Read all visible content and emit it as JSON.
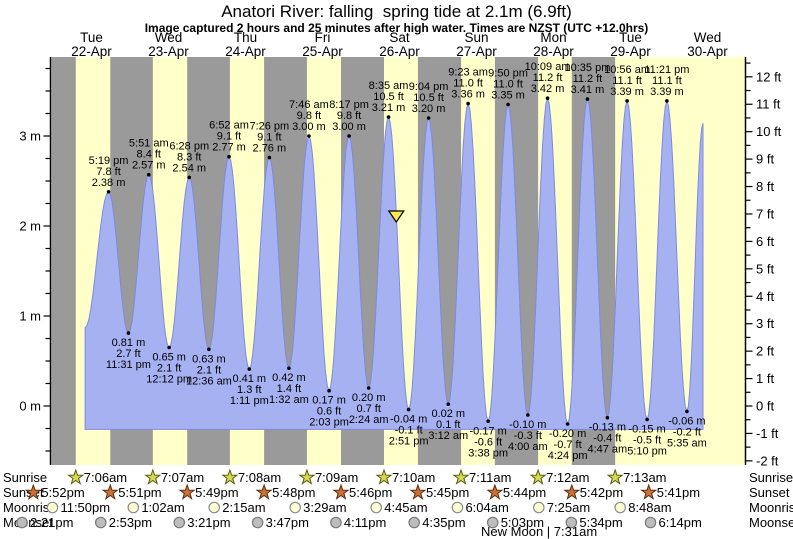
{
  "header": {
    "title": "Anatori River: falling  spring tide at 2.1m (6.9ft)",
    "subtitle": "Image captured 2 hours and 25 minutes after high water. Times are NZST (UTC +12.0hrs)"
  },
  "colors": {
    "day_band": "#ffffc9",
    "night_band": "#9a9a9a",
    "tide_fill": "#a6b1f2",
    "tide_stroke": "#7d8bdf",
    "day_label_red": "#ee3424",
    "marker_fill": "#ffe94e",
    "sunrise_star_fill": "#d6d84f",
    "sunrise_star_stroke": "#585a14",
    "sunset_star_fill": "#c9713b",
    "sunset_star_stroke": "#5d2c0b",
    "moonrise_fill": "#ffffd6",
    "moonrise_stroke": "#8a8a8a",
    "moonset_fill": "#bdbdbd",
    "moonset_stroke": "#7a7a7a",
    "axis": "#000000"
  },
  "chart_data": {
    "type": "area",
    "title": "Anatori River: falling  spring tide at 2.1m (6.9ft)",
    "x_axis_days": [
      {
        "dow": "Tue",
        "date": "22-Apr"
      },
      {
        "dow": "Wed",
        "date": "23-Apr"
      },
      {
        "dow": "Thu",
        "date": "24-Apr"
      },
      {
        "dow": "Fri",
        "date": "25-Apr"
      },
      {
        "dow": "Sat",
        "date": "26-Apr"
      },
      {
        "dow": "Sun",
        "date": "27-Apr"
      },
      {
        "dow": "Mon",
        "date": "28-Apr"
      },
      {
        "dow": "Tue",
        "date": "29-Apr"
      },
      {
        "dow": "Wed",
        "date": "30-Apr"
      }
    ],
    "y_axis_left": {
      "unit": "m",
      "labels": [
        {
          "v": 0,
          "t": "0 m"
        },
        {
          "v": 1,
          "t": "1 m"
        },
        {
          "v": 2,
          "t": "2 m"
        },
        {
          "v": 3,
          "t": "3 m"
        }
      ],
      "minor_step": 0.25,
      "range_m": [
        -0.65,
        3.88
      ]
    },
    "y_axis_right": {
      "unit": "ft",
      "labels": [
        {
          "v": -2,
          "t": "-2 ft"
        },
        {
          "v": -1,
          "t": "-1 ft"
        },
        {
          "v": 0,
          "t": "0 ft"
        },
        {
          "v": 1,
          "t": "1 ft"
        },
        {
          "v": 2,
          "t": "2 ft"
        },
        {
          "v": 3,
          "t": "3 ft"
        },
        {
          "v": 4,
          "t": "4 ft"
        },
        {
          "v": 5,
          "t": "5 ft"
        },
        {
          "v": 6,
          "t": "6 ft"
        },
        {
          "v": 7,
          "t": "7 ft"
        },
        {
          "v": 8,
          "t": "8 ft"
        },
        {
          "v": 9,
          "t": "9 ft"
        },
        {
          "v": 10,
          "t": "10 ft"
        },
        {
          "v": 11,
          "t": "11 ft"
        },
        {
          "v": 12,
          "t": "12 ft"
        }
      ],
      "minor_step": 0.5,
      "range_ft": [
        -2,
        12.5
      ]
    },
    "extremes": [
      {
        "type": "high",
        "day": 0,
        "time": "5:19 pm",
        "ft": "7.8 ft",
        "m": "2.38 m"
      },
      {
        "type": "low",
        "day": 0,
        "time": "11:31 pm",
        "ft": "2.7 ft",
        "m": "0.81 m"
      },
      {
        "type": "high",
        "day": 1,
        "time": "5:51 am",
        "ft": "8.4 ft",
        "m": "2.57 m"
      },
      {
        "type": "low",
        "day": 1,
        "time": "12:12 pm",
        "ft": "2.1 ft",
        "m": "0.65 m"
      },
      {
        "type": "high",
        "day": 1,
        "time": "6:28 pm",
        "ft": "8.3 ft",
        "m": "2.54 m"
      },
      {
        "type": "low",
        "day": 2,
        "time": "12:36 am",
        "ft": "2.1 ft",
        "m": "0.63 m"
      },
      {
        "type": "high",
        "day": 2,
        "time": "6:52 am",
        "ft": "9.1 ft",
        "m": "2.77 m"
      },
      {
        "type": "low",
        "day": 2,
        "time": "1:11 pm",
        "ft": "1.3 ft",
        "m": "0.41 m"
      },
      {
        "type": "high",
        "day": 2,
        "time": "7:26 pm",
        "ft": "9.1 ft",
        "m": "2.76 m"
      },
      {
        "type": "low",
        "day": 3,
        "time": "1:32 am",
        "ft": "1.4 ft",
        "m": "0.42 m"
      },
      {
        "type": "high",
        "day": 3,
        "time": "7:46 am",
        "ft": "9.8 ft",
        "m": "3.00 m"
      },
      {
        "type": "low",
        "day": 3,
        "time": "2:03 pm",
        "ft": "0.6 ft",
        "m": "0.17 m"
      },
      {
        "type": "high",
        "day": 3,
        "time": "8:17 pm",
        "ft": "9.8 ft",
        "m": "3.00 m"
      },
      {
        "type": "low",
        "day": 4,
        "time": "2:24 am",
        "ft": "0.7 ft",
        "m": "0.20 m"
      },
      {
        "type": "high",
        "day": 4,
        "time": "8:35 am",
        "ft": "10.5 ft",
        "m": "3.21 m"
      },
      {
        "type": "low",
        "day": 4,
        "time": "2:51 pm",
        "ft": "-0.1 ft",
        "m": "-0.04 m"
      },
      {
        "type": "high",
        "day": 4,
        "time": "9:04 pm",
        "ft": "10.5 ft",
        "m": "3.20 m"
      },
      {
        "type": "low",
        "day": 5,
        "time": "3:12 am",
        "ft": "0.1 ft",
        "m": "0.02 m"
      },
      {
        "type": "high",
        "day": 5,
        "time": "9:23 am",
        "ft": "11.0 ft",
        "m": "3.36 m"
      },
      {
        "type": "low",
        "day": 5,
        "time": "3:38 pm",
        "ft": "-0.6 ft",
        "m": "-0.17 m"
      },
      {
        "type": "high",
        "day": 5,
        "time": "9:50 pm",
        "ft": "11.0 ft",
        "m": "3.35 m"
      },
      {
        "type": "low",
        "day": 6,
        "time": "4:00 am",
        "ft": "-0.3 ft",
        "m": "-0.10 m"
      },
      {
        "type": "high",
        "day": 6,
        "time": "10:09 am",
        "ft": "11.2 ft",
        "m": "3.42 m"
      },
      {
        "type": "low",
        "day": 6,
        "time": "4:24 pm",
        "ft": "-0.7 ft",
        "m": "-0.20 m"
      },
      {
        "type": "high",
        "day": 6,
        "time": "10:35 pm",
        "ft": "11.2 ft",
        "m": "3.41 m"
      },
      {
        "type": "low",
        "day": 7,
        "time": "4:47 am",
        "ft": "-0.4 ft",
        "m": "-0.13 m"
      },
      {
        "type": "high",
        "day": 7,
        "time": "10:56 am",
        "ft": "11.1 ft",
        "m": "3.39 m"
      },
      {
        "type": "low",
        "day": 7,
        "time": "5:10 pm",
        "ft": "-0.5 ft",
        "m": "-0.15 m"
      },
      {
        "type": "high",
        "day": 7,
        "time": "11:21 pm",
        "ft": "11.1 ft",
        "m": "3.39 m"
      },
      {
        "type": "low",
        "day": 8,
        "time": "5:35 am",
        "ft": "-0.2 ft",
        "m": "-0.06 m"
      }
    ],
    "current_marker": {
      "day": 4,
      "time": "11:00 am",
      "level_m": 2.1
    },
    "data_start": {
      "day": 0,
      "hour": 10.0,
      "level_m": 0.87
    },
    "data_end": {
      "day": 8,
      "hour": 10.6,
      "level_m": 3.14
    },
    "fill_baseline_m": -0.26
  },
  "astro": {
    "rows": [
      {
        "name": "sunrise",
        "label": "Sunrise",
        "icon": "sunrise-star-icon",
        "events": [
          {
            "day": 0,
            "time": "7:06am"
          },
          {
            "day": 1,
            "time": "7:07am"
          },
          {
            "day": 2,
            "time": "7:08am"
          },
          {
            "day": 3,
            "time": "7:09am"
          },
          {
            "day": 4,
            "time": "7:10am"
          },
          {
            "day": 5,
            "time": "7:11am"
          },
          {
            "day": 6,
            "time": "7:12am"
          },
          {
            "day": 7,
            "time": "7:13am"
          }
        ]
      },
      {
        "name": "sunset",
        "label": "Sunset",
        "icon": "sunset-star-icon",
        "events": [
          {
            "day": -1,
            "time": "5:52pm"
          },
          {
            "day": 0,
            "time": "5:51pm"
          },
          {
            "day": 1,
            "time": "5:49pm"
          },
          {
            "day": 2,
            "time": "5:48pm"
          },
          {
            "day": 3,
            "time": "5:46pm"
          },
          {
            "day": 4,
            "time": "5:45pm"
          },
          {
            "day": 5,
            "time": "5:44pm"
          },
          {
            "day": 6,
            "time": "5:42pm"
          },
          {
            "day": 7,
            "time": "5:41pm"
          }
        ]
      },
      {
        "name": "moonrise",
        "label": "Moonrise",
        "icon": "moonrise-icon",
        "events": [
          {
            "day": -1,
            "time": "11:50pm"
          },
          {
            "day": 1,
            "time": "1:02am"
          },
          {
            "day": 2,
            "time": "2:15am"
          },
          {
            "day": 3,
            "time": "3:29am"
          },
          {
            "day": 4,
            "time": "4:45am"
          },
          {
            "day": 5,
            "time": "6:04am"
          },
          {
            "day": 6,
            "time": "7:25am"
          },
          {
            "day": 7,
            "time": "8:48am"
          }
        ]
      },
      {
        "name": "moonset",
        "label": "Moonset",
        "icon": "moonset-icon",
        "events": [
          {
            "day": -1,
            "time": "2:21pm"
          },
          {
            "day": 0,
            "time": "2:53pm"
          },
          {
            "day": 1,
            "time": "3:21pm"
          },
          {
            "day": 2,
            "time": "3:47pm"
          },
          {
            "day": 3,
            "time": "4:11pm"
          },
          {
            "day": 4,
            "time": "4:35pm"
          },
          {
            "day": 5,
            "time": "5:03pm"
          },
          {
            "day": 6,
            "time": "5:34pm"
          },
          {
            "day": 7,
            "time": "6:14pm"
          }
        ]
      }
    ],
    "new_moon": {
      "text": "New Moon | 7:31am",
      "day": 6,
      "time": "7:31am"
    }
  }
}
